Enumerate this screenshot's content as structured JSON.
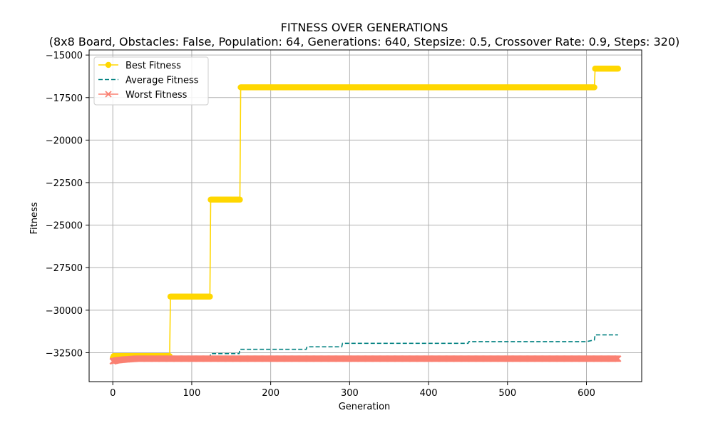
{
  "chart_data": {
    "type": "line",
    "title": "FITNESS OVER GENERATIONS",
    "subtitle": "(8x8 Board, Obstacles: False, Population: 64, Generations: 640, Stepsize: 0.5, Crossover Rate: 0.9, Steps: 320)",
    "xlabel": "Generation",
    "ylabel": "Fitness",
    "xlim": [
      -30,
      670
    ],
    "ylim": [
      -34200,
      -14700
    ],
    "xticks": [
      0,
      100,
      200,
      300,
      400,
      500,
      600
    ],
    "yticks": [
      -32500,
      -30000,
      -27500,
      -25000,
      -22500,
      -20000,
      -17500,
      -15000
    ],
    "grid": true,
    "legend_position": "top-left",
    "series": [
      {
        "name": "Best Fitness",
        "color": "#FFD700",
        "style": "solid-circle-markers",
        "points": [
          [
            0,
            -32800
          ],
          [
            1,
            -32700
          ],
          [
            72,
            -32700
          ],
          [
            73,
            -29200
          ],
          [
            123,
            -29200
          ],
          [
            124,
            -23500
          ],
          [
            161,
            -23500
          ],
          [
            162,
            -16900
          ],
          [
            610,
            -16900
          ],
          [
            611,
            -15800
          ],
          [
            640,
            -15800
          ]
        ]
      },
      {
        "name": "Average Fitness",
        "color": "#008080",
        "style": "dashed",
        "points": [
          [
            0,
            -32900
          ],
          [
            10,
            -32850
          ],
          [
            30,
            -32800
          ],
          [
            123,
            -32800
          ],
          [
            124,
            -32550
          ],
          [
            160,
            -32550
          ],
          [
            161,
            -32300
          ],
          [
            245,
            -32300
          ],
          [
            246,
            -32150
          ],
          [
            290,
            -32150
          ],
          [
            291,
            -31950
          ],
          [
            450,
            -31950
          ],
          [
            451,
            -31850
          ],
          [
            600,
            -31850
          ],
          [
            610,
            -31750
          ],
          [
            611,
            -31450
          ],
          [
            640,
            -31450
          ]
        ]
      },
      {
        "name": "Worst Fitness",
        "color": "#FA8072",
        "style": "solid-x-markers",
        "points": [
          [
            0,
            -33000
          ],
          [
            5,
            -32950
          ],
          [
            15,
            -32900
          ],
          [
            30,
            -32850
          ],
          [
            640,
            -32850
          ]
        ]
      }
    ]
  }
}
